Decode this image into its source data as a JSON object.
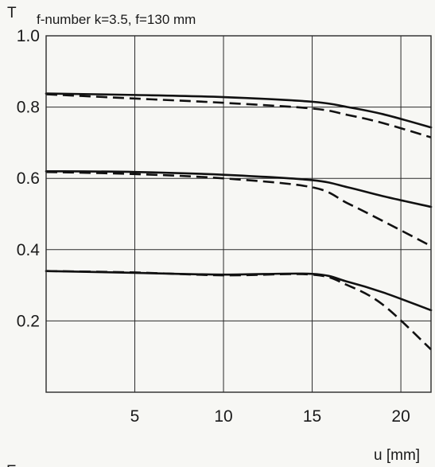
{
  "chart_data": {
    "type": "line",
    "title": "f-number k=3.5, f=130 mm",
    "ylabel": "T",
    "xlabel": "u [mm]",
    "xlim": [
      0,
      21.7
    ],
    "ylim": [
      0,
      1.0
    ],
    "xticks": [
      5,
      10,
      15,
      20
    ],
    "yticks": [
      0.2,
      0.4,
      0.6,
      0.8,
      1.0
    ],
    "xtick_labels": [
      "5",
      "10",
      "15",
      "20"
    ],
    "ytick_labels": [
      "0.2",
      "0.4",
      "0.6",
      "0.8",
      "1.0"
    ],
    "grid": true,
    "series": [
      {
        "style": "solid",
        "x": [
          0,
          5,
          10,
          15,
          17,
          19,
          21.7
        ],
        "y": [
          0.838,
          0.834,
          0.828,
          0.815,
          0.8,
          0.78,
          0.743
        ]
      },
      {
        "style": "dashed",
        "x": [
          0,
          5,
          10,
          15,
          17,
          19,
          21.7
        ],
        "y": [
          0.836,
          0.824,
          0.812,
          0.796,
          0.778,
          0.755,
          0.715
        ]
      },
      {
        "style": "solid",
        "x": [
          0,
          5,
          10,
          15,
          17,
          19,
          21.7
        ],
        "y": [
          0.62,
          0.618,
          0.61,
          0.595,
          0.575,
          0.55,
          0.52
        ]
      },
      {
        "style": "dashed",
        "x": [
          0,
          5,
          10,
          15,
          17,
          19,
          21.7
        ],
        "y": [
          0.618,
          0.612,
          0.6,
          0.575,
          0.53,
          0.48,
          0.41
        ]
      },
      {
        "style": "solid",
        "x": [
          0,
          5,
          10,
          15,
          17,
          19,
          21.7
        ],
        "y": [
          0.34,
          0.335,
          0.33,
          0.332,
          0.31,
          0.28,
          0.23
        ]
      },
      {
        "style": "dashed",
        "x": [
          0,
          5,
          10,
          15,
          17,
          19,
          21.7
        ],
        "y": [
          0.34,
          0.336,
          0.328,
          0.33,
          0.3,
          0.245,
          0.12
        ]
      }
    ]
  },
  "corner_text": "E"
}
